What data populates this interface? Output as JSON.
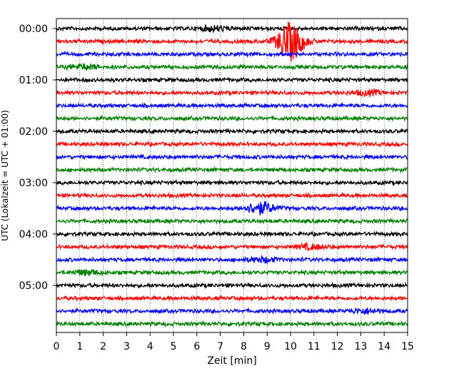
{
  "chart_data": {
    "type": "line",
    "title": "",
    "xlabel": "Zeit  [min]",
    "ylabel": "UTC (Lokalzeit = UTC + 01:00)",
    "xlim": [
      0,
      15
    ],
    "x_ticks": [
      0,
      1,
      2,
      3,
      4,
      5,
      6,
      7,
      8,
      9,
      10,
      11,
      12,
      13,
      14,
      15
    ],
    "y_tick_labels": [
      "00:00",
      "01:00",
      "02:00",
      "03:00",
      "04:00",
      "05:00"
    ],
    "trace_interval_minutes": 15,
    "trace_count": 24,
    "trace_colors": [
      "#000000",
      "#ff0000",
      "#0000ff",
      "#008000"
    ],
    "grid": "vertical dotted",
    "events": [
      {
        "trace": 1,
        "x_min": 10.0,
        "amplitude": "large"
      },
      {
        "trace": 14,
        "x_min": 8.7,
        "amplitude": "medium"
      },
      {
        "trace": 0,
        "x_min": 6.7,
        "amplitude": "small"
      },
      {
        "trace": 3,
        "x_min": 1.2,
        "amplitude": "small"
      },
      {
        "trace": 5,
        "x_min": 13.3,
        "amplitude": "small"
      },
      {
        "trace": 17,
        "x_min": 10.8,
        "amplitude": "small"
      },
      {
        "trace": 18,
        "x_min": 8.8,
        "amplitude": "small"
      },
      {
        "trace": 19,
        "x_min": 1.3,
        "amplitude": "small"
      },
      {
        "trace": 22,
        "x_min": 13.2,
        "amplitude": "small"
      }
    ]
  }
}
